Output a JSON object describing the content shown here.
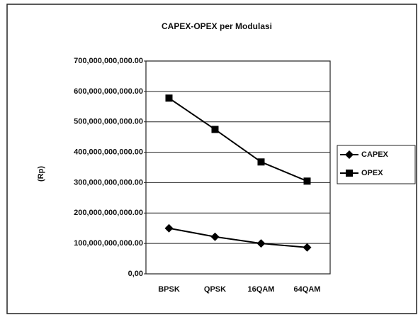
{
  "chart_data": {
    "type": "line",
    "title": "CAPEX-OPEX per Modulasi",
    "ylabel": "(Rp)",
    "categories": [
      "BPSK",
      "QPSK",
      "16QAM",
      "64QAM"
    ],
    "series": [
      {
        "name": "CAPEX",
        "color": "#000000",
        "marker": "diamond",
        "values": [
          150000000000,
          122000000000,
          100000000000,
          87000000000
        ]
      },
      {
        "name": "OPEX",
        "color": "#000000",
        "marker": "square",
        "values": [
          578000000000,
          475000000000,
          368000000000,
          305000000000
        ]
      }
    ],
    "ylim": [
      0,
      700000000000
    ],
    "yticks": [
      {
        "value": 0,
        "label": "0,00"
      },
      {
        "value": 100000000000,
        "label": "100,000,000,000.00"
      },
      {
        "value": 200000000000,
        "label": "200,000,000,000.00"
      },
      {
        "value": 300000000000,
        "label": "300,000,000,000.00"
      },
      {
        "value": 400000000000,
        "label": "400,000,000,000.00"
      },
      {
        "value": 500000000000,
        "label": "500,000,000,000.00"
      },
      {
        "value": 600000000000,
        "label": "600,000,000,000.00"
      },
      {
        "value": 700000000000,
        "label": "700,000,000,000.00"
      }
    ],
    "grid": true,
    "legend": "right"
  }
}
